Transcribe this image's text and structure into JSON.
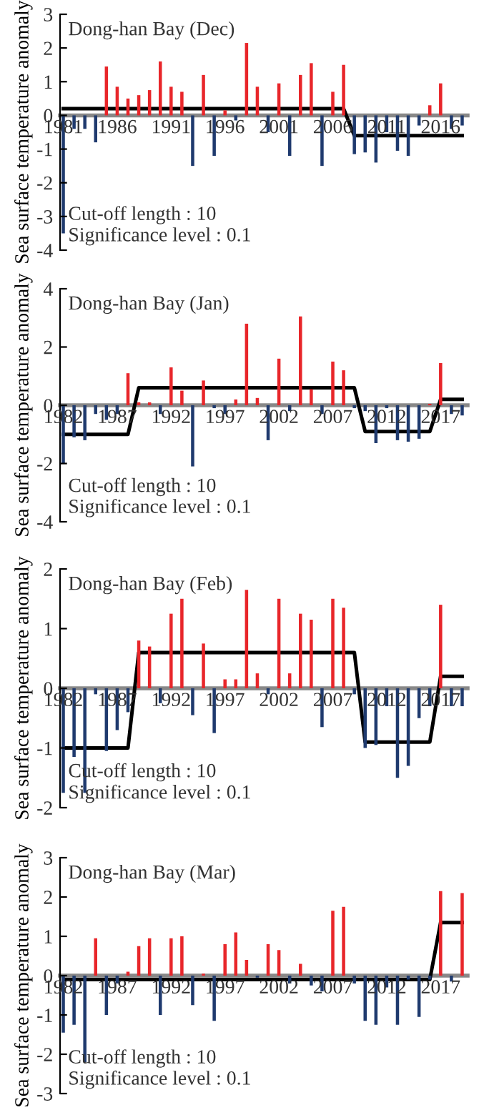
{
  "chart_data": [
    {
      "type": "bar",
      "title": "Dong-han Bay (Dec)",
      "ylabel": "Sea surface temperature anomaly",
      "annotations": [
        "Cut-off length : 10",
        "Significance level : 0.1"
      ],
      "x": [
        1981,
        1982,
        1983,
        1984,
        1985,
        1986,
        1987,
        1988,
        1989,
        1990,
        1991,
        1992,
        1993,
        1994,
        1995,
        1996,
        1997,
        1998,
        1999,
        2000,
        2001,
        2002,
        2003,
        2004,
        2005,
        2006,
        2007,
        2008,
        2009,
        2010,
        2011,
        2012,
        2013,
        2014,
        2015,
        2016,
        2017,
        2018
      ],
      "xlim": [
        1980.7,
        2018.5
      ],
      "xticks": [
        1981,
        1986,
        1991,
        1996,
        2001,
        2006,
        2011,
        2016
      ],
      "ylim": [
        -4,
        3
      ],
      "yticks": [
        -4,
        -3,
        -2,
        -1,
        0,
        1,
        2,
        3
      ],
      "grid": false,
      "series": [
        {
          "values": [
            -3.5,
            -0.4,
            -0.4,
            -0.8,
            1.45,
            0.85,
            0.5,
            0.6,
            0.75,
            1.6,
            0.85,
            0.7,
            -1.5,
            1.2,
            -1.2,
            0.15,
            -0.15,
            2.15,
            0.85,
            -0.5,
            0.95,
            -1.2,
            1.2,
            1.55,
            -1.5,
            0.7,
            1.5,
            -1.15,
            -1.1,
            -1.4,
            -0.5,
            -1.05,
            -1.2,
            -0.3,
            0.3,
            0.95,
            -0.4,
            -0.3
          ],
          "colors": [
            "#1f3a6e",
            "#1f3a6e",
            "#1f3a6e",
            "#1f3a6e",
            "#e8262a",
            "#e8262a",
            "#e8262a",
            "#e8262a",
            "#e8262a",
            "#e8262a",
            "#e8262a",
            "#e8262a",
            "#1f3a6e",
            "#e8262a",
            "#1f3a6e",
            "#e8262a",
            "#1f3a6e",
            "#e8262a",
            "#e8262a",
            "#1f3a6e",
            "#e8262a",
            "#1f3a6e",
            "#e8262a",
            "#e8262a",
            "#1f3a6e",
            "#e8262a",
            "#e8262a",
            "#1f3a6e",
            "#1f3a6e",
            "#1f3a6e",
            "#1f3a6e",
            "#1f3a6e",
            "#1f3a6e",
            "#1f3a6e",
            "#e8262a",
            "#e8262a",
            "#1f3a6e",
            "#1f3a6e"
          ]
        },
        {
          "type": "line",
          "color": "#000000",
          "x": [
            1981,
            2007,
            2008,
            2018
          ],
          "values": [
            0.2,
            0.2,
            -0.6,
            -0.6
          ]
        }
      ]
    },
    {
      "type": "bar",
      "title": "Dong-han Bay (Jan)",
      "ylabel": "Sea surface temperature anomaly",
      "annotations": [
        "Cut-off length : 10",
        "Significance level : 0.1"
      ],
      "x": [
        1982,
        1983,
        1984,
        1985,
        1986,
        1987,
        1988,
        1989,
        1990,
        1991,
        1992,
        1993,
        1994,
        1995,
        1996,
        1997,
        1998,
        1999,
        2000,
        2001,
        2002,
        2003,
        2004,
        2005,
        2006,
        2007,
        2008,
        2009,
        2010,
        2011,
        2012,
        2013,
        2014,
        2015,
        2016,
        2017,
        2018,
        2019
      ],
      "xlim": [
        1981.7,
        2019.5
      ],
      "xticks": [
        1982,
        1987,
        1992,
        1997,
        2002,
        2007,
        2012,
        2017
      ],
      "ylim": [
        -4,
        4
      ],
      "yticks": [
        -4,
        -2,
        0,
        2,
        4
      ],
      "grid": false,
      "series": [
        {
          "values": [
            -2.0,
            -1.1,
            -1.2,
            -0.3,
            -0.5,
            -0.3,
            1.1,
            0.1,
            0.1,
            -0.3,
            1.3,
            0.5,
            -2.1,
            0.85,
            -0.1,
            -0.3,
            0.2,
            2.8,
            0.25,
            -1.2,
            1.6,
            -0.2,
            3.05,
            0.55,
            -0.3,
            1.5,
            1.2,
            -0.1,
            -0.2,
            -1.3,
            -0.1,
            -1.2,
            -1.25,
            -1.15,
            0.05,
            1.45,
            -0.3,
            -0.35
          ],
          "colors": [
            "#1f3a6e",
            "#1f3a6e",
            "#1f3a6e",
            "#1f3a6e",
            "#1f3a6e",
            "#1f3a6e",
            "#e8262a",
            "#e8262a",
            "#e8262a",
            "#1f3a6e",
            "#e8262a",
            "#e8262a",
            "#1f3a6e",
            "#e8262a",
            "#1f3a6e",
            "#1f3a6e",
            "#e8262a",
            "#e8262a",
            "#e8262a",
            "#1f3a6e",
            "#e8262a",
            "#1f3a6e",
            "#e8262a",
            "#e8262a",
            "#1f3a6e",
            "#e8262a",
            "#e8262a",
            "#1f3a6e",
            "#1f3a6e",
            "#1f3a6e",
            "#1f3a6e",
            "#1f3a6e",
            "#1f3a6e",
            "#1f3a6e",
            "#e8262a",
            "#e8262a",
            "#1f3a6e",
            "#1f3a6e"
          ]
        },
        {
          "type": "line",
          "color": "#000000",
          "x": [
            1982,
            1988,
            1989,
            2009,
            2010,
            2016,
            2017,
            2019
          ],
          "values": [
            -1.0,
            -1.0,
            0.6,
            0.6,
            -0.9,
            -0.9,
            0.2,
            0.2
          ]
        }
      ]
    },
    {
      "type": "bar",
      "title": "Dong-han Bay (Feb)",
      "ylabel": "Sea surface temperature anomaly",
      "annotations": [
        "Cut-off length : 10",
        "Significance level : 0.1"
      ],
      "x": [
        1982,
        1983,
        1984,
        1985,
        1986,
        1987,
        1988,
        1989,
        1990,
        1991,
        1992,
        1993,
        1994,
        1995,
        1996,
        1997,
        1998,
        1999,
        2000,
        2001,
        2002,
        2003,
        2004,
        2005,
        2006,
        2007,
        2008,
        2009,
        2010,
        2011,
        2012,
        2013,
        2014,
        2015,
        2016,
        2017,
        2018,
        2019
      ],
      "xlim": [
        1981.7,
        2019.5
      ],
      "xticks": [
        1982,
        1987,
        1992,
        1997,
        2002,
        2007,
        2012,
        2017
      ],
      "ylim": [
        -2,
        2
      ],
      "yticks": [
        -2,
        -1,
        0,
        1,
        2
      ],
      "grid": false,
      "series": [
        {
          "values": [
            -1.75,
            -1.15,
            -1.75,
            -0.1,
            -1.05,
            -0.7,
            -0.4,
            0.8,
            0.7,
            -0.25,
            1.25,
            1.5,
            -0.45,
            0.75,
            -0.75,
            0.15,
            0.15,
            1.65,
            0.25,
            -0.1,
            1.5,
            0.25,
            1.25,
            1.15,
            -0.65,
            1.5,
            1.35,
            -0.1,
            -1.0,
            -0.95,
            -0.3,
            -1.5,
            -1.3,
            -0.5,
            -0.3,
            1.4,
            -0.3,
            -0.3
          ],
          "colors": [
            "#1f3a6e",
            "#1f3a6e",
            "#1f3a6e",
            "#1f3a6e",
            "#1f3a6e",
            "#1f3a6e",
            "#1f3a6e",
            "#e8262a",
            "#e8262a",
            "#1f3a6e",
            "#e8262a",
            "#e8262a",
            "#1f3a6e",
            "#e8262a",
            "#1f3a6e",
            "#e8262a",
            "#e8262a",
            "#e8262a",
            "#e8262a",
            "#1f3a6e",
            "#e8262a",
            "#e8262a",
            "#e8262a",
            "#e8262a",
            "#1f3a6e",
            "#e8262a",
            "#e8262a",
            "#1f3a6e",
            "#1f3a6e",
            "#1f3a6e",
            "#1f3a6e",
            "#1f3a6e",
            "#1f3a6e",
            "#1f3a6e",
            "#1f3a6e",
            "#e8262a",
            "#1f3a6e",
            "#1f3a6e"
          ]
        },
        {
          "type": "line",
          "color": "#000000",
          "x": [
            1982,
            1988,
            1989,
            2009,
            2010,
            2016,
            2017,
            2019
          ],
          "values": [
            -1.0,
            -1.0,
            0.6,
            0.6,
            -0.9,
            -0.9,
            0.2,
            0.2
          ]
        }
      ]
    },
    {
      "type": "bar",
      "title": "Dong-han Bay (Mar)",
      "ylabel": "Sea surface temperature anomaly",
      "annotations": [
        "Cut-off length : 10",
        "Significance level : 0.1"
      ],
      "x": [
        1982,
        1983,
        1984,
        1985,
        1986,
        1987,
        1988,
        1989,
        1990,
        1991,
        1992,
        1993,
        1994,
        1995,
        1996,
        1997,
        1998,
        1999,
        2000,
        2001,
        2002,
        2003,
        2004,
        2005,
        2006,
        2007,
        2008,
        2009,
        2010,
        2011,
        2012,
        2013,
        2014,
        2015,
        2016,
        2017,
        2018,
        2019
      ],
      "xlim": [
        1981.7,
        2019.5
      ],
      "xticks": [
        1982,
        1987,
        1992,
        1997,
        2002,
        2007,
        2012,
        2017
      ],
      "ylim": [
        -3,
        3
      ],
      "yticks": [
        -3,
        -2,
        -1,
        0,
        1,
        2,
        3
      ],
      "grid": false,
      "series": [
        {
          "values": [
            -1.45,
            -1.25,
            -2.2,
            0.95,
            -1.0,
            -0.2,
            0.1,
            0.75,
            0.95,
            -1.0,
            0.95,
            1.0,
            -0.75,
            0.05,
            -1.15,
            0.8,
            1.1,
            0.4,
            -0.05,
            0.8,
            0.65,
            -0.2,
            0.3,
            -0.25,
            -0.4,
            1.65,
            1.75,
            -0.2,
            -1.15,
            -1.25,
            -0.3,
            -1.25,
            -0.1,
            -1.05,
            -0.1,
            2.15,
            -0.15,
            2.1
          ],
          "colors": [
            "#1f3a6e",
            "#1f3a6e",
            "#1f3a6e",
            "#e8262a",
            "#1f3a6e",
            "#1f3a6e",
            "#e8262a",
            "#e8262a",
            "#e8262a",
            "#1f3a6e",
            "#e8262a",
            "#e8262a",
            "#1f3a6e",
            "#e8262a",
            "#1f3a6e",
            "#e8262a",
            "#e8262a",
            "#e8262a",
            "#1f3a6e",
            "#e8262a",
            "#e8262a",
            "#1f3a6e",
            "#e8262a",
            "#1f3a6e",
            "#1f3a6e",
            "#e8262a",
            "#e8262a",
            "#1f3a6e",
            "#1f3a6e",
            "#1f3a6e",
            "#1f3a6e",
            "#1f3a6e",
            "#1f3a6e",
            "#1f3a6e",
            "#1f3a6e",
            "#e8262a",
            "#1f3a6e",
            "#e8262a"
          ]
        },
        {
          "type": "line",
          "color": "#000000",
          "x": [
            1982,
            2016,
            2017,
            2019
          ],
          "values": [
            -0.1,
            -0.1,
            1.35,
            1.35
          ]
        }
      ]
    }
  ]
}
